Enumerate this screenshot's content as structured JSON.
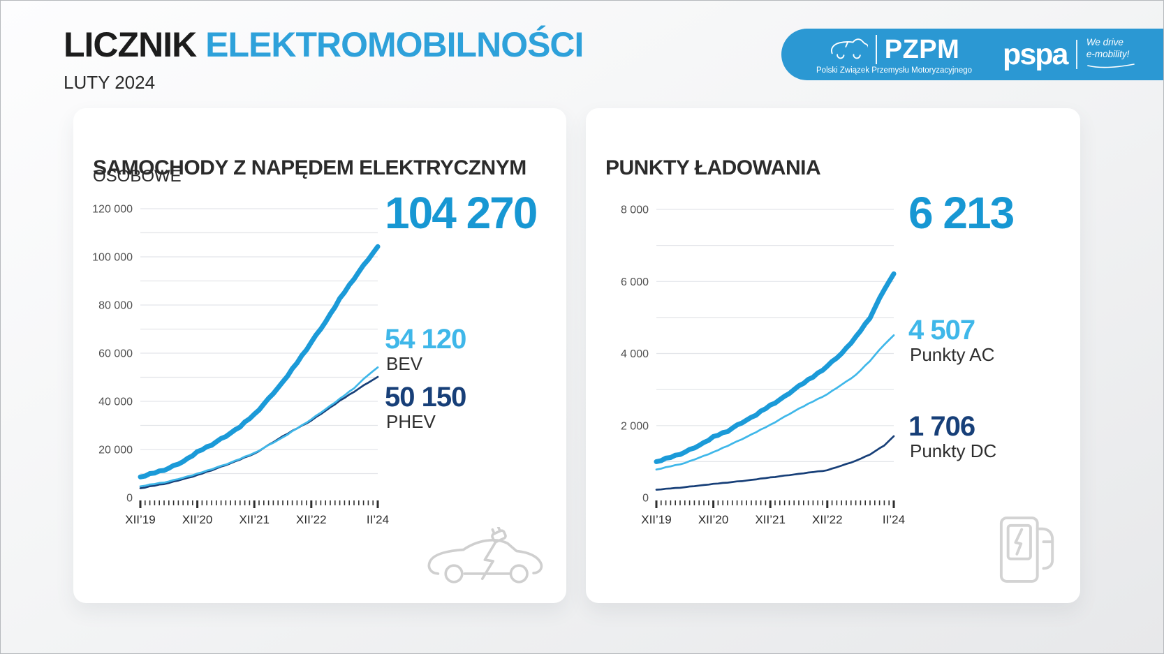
{
  "header": {
    "title_primary": "LICZNIK",
    "title_accent": "ELEKTROMOBILNOŚCI",
    "date_label": "LUTY 2024"
  },
  "banner": {
    "pzpm_name": "PZPM",
    "pzpm_full_name": "Polski Związek Przemysłu Motoryzacyjnego",
    "pspa_name": "pspa",
    "pspa_tagline_line1": "We drive",
    "pspa_tagline_line2": "e-mobility!"
  },
  "colors": {
    "accent_blue": "#1797D3",
    "light_blue": "#3FB7E9",
    "navy": "#173F78",
    "banner_blue": "#2B98D3",
    "title_blue": "#2EA1DA",
    "grid_gray": "#E3E5E9",
    "axis_text": "#4f4f4f",
    "icon_gray": "#CFCFCF"
  },
  "chart_data": [
    {
      "type": "line",
      "title": "SAMOCHODY Z NAPĘDEM ELEKTRYCZNYM",
      "subtitle": "OSOBOWE",
      "headline": {
        "value": "104 270",
        "color": "#1797D3",
        "series": "EV total"
      },
      "legend": [
        {
          "value": "54 120",
          "label": "BEV",
          "color": "#3FB7E9"
        },
        {
          "value": "50 150",
          "label": "PHEV",
          "color": "#173F78"
        }
      ],
      "legend_position": "right",
      "grid": true,
      "footer_icon": "electric-car-icon",
      "x_axis": {
        "tick_labels": [
          "XII’19",
          "XII’20",
          "XII’21",
          "XII’22",
          "II’24"
        ],
        "tick_months": [
          0,
          12,
          24,
          36,
          50
        ],
        "months_total": 50
      },
      "y_axis": {
        "min": 0,
        "max": 120000,
        "major_step": 20000,
        "minor_step": 10000,
        "tick_labels": [
          "120 000",
          "100 000",
          "80 000",
          "60 000",
          "40 000",
          "20 000",
          "0"
        ]
      },
      "series": [
        {
          "name": "EV total",
          "color": "#1B9AD8",
          "stroke_width": 7,
          "wiggle": 600,
          "points": [
            [
              0,
              8600
            ],
            [
              3,
              10300
            ],
            [
              6,
              12200
            ],
            [
              9,
              15000
            ],
            [
              12,
              18900
            ],
            [
              15,
              22000
            ],
            [
              18,
              25500
            ],
            [
              21,
              29500
            ],
            [
              24,
              34500
            ],
            [
              27,
              41000
            ],
            [
              30,
              48000
            ],
            [
              33,
              56000
            ],
            [
              36,
              64500
            ],
            [
              39,
              73000
            ],
            [
              42,
              82500
            ],
            [
              45,
              91000
            ],
            [
              48,
              99000
            ],
            [
              50,
              104270
            ]
          ]
        },
        {
          "name": "BEV",
          "color": "#3FB7E9",
          "stroke_width": 2.7,
          "wiggle": 260,
          "points": [
            [
              0,
              4700
            ],
            [
              6,
              6700
            ],
            [
              12,
              9900
            ],
            [
              18,
              13800
            ],
            [
              24,
              18500
            ],
            [
              30,
              25000
            ],
            [
              36,
              32500
            ],
            [
              42,
              41000
            ],
            [
              45,
              45500
            ],
            [
              48,
              51000
            ],
            [
              50,
              54120
            ]
          ]
        },
        {
          "name": "PHEV",
          "color": "#173F78",
          "stroke_width": 2.7,
          "wiggle": 260,
          "points": [
            [
              0,
              3900
            ],
            [
              6,
              6100
            ],
            [
              12,
              9300
            ],
            [
              18,
              13500
            ],
            [
              24,
              18200
            ],
            [
              30,
              25500
            ],
            [
              36,
              32000
            ],
            [
              42,
              40200
            ],
            [
              45,
              44000
            ],
            [
              48,
              47800
            ],
            [
              50,
              50150
            ]
          ]
        }
      ]
    },
    {
      "type": "line",
      "title": "PUNKTY ŁADOWANIA",
      "subtitle": "",
      "headline": {
        "value": "6 213",
        "color": "#1797D3",
        "series": "Charging points total"
      },
      "legend": [
        {
          "value": "4 507",
          "label": "Punkty AC",
          "color": "#3FB7E9"
        },
        {
          "value": "1 706",
          "label": "Punkty DC",
          "color": "#173F78"
        }
      ],
      "legend_position": "right",
      "grid": true,
      "footer_icon": "ev-charger-icon",
      "x_axis": {
        "tick_labels": [
          "XII’19",
          "XII’20",
          "XII’21",
          "XII’22",
          "II’24"
        ],
        "tick_months": [
          0,
          12,
          24,
          36,
          50
        ],
        "months_total": 50
      },
      "y_axis": {
        "min": 0,
        "max": 8000,
        "major_step": 2000,
        "minor_step": 1000,
        "tick_labels": [
          "8 000",
          "6 000",
          "4 000",
          "2 000",
          "0"
        ]
      },
      "series": [
        {
          "name": "Charging points total",
          "color": "#1B9AD8",
          "stroke_width": 7,
          "wiggle": 38,
          "points": [
            [
              0,
              1000
            ],
            [
              3,
              1120
            ],
            [
              6,
              1260
            ],
            [
              9,
              1450
            ],
            [
              12,
              1680
            ],
            [
              15,
              1850
            ],
            [
              18,
              2080
            ],
            [
              21,
              2300
            ],
            [
              24,
              2560
            ],
            [
              27,
              2800
            ],
            [
              30,
              3100
            ],
            [
              33,
              3350
            ],
            [
              36,
              3650
            ],
            [
              39,
              4000
            ],
            [
              42,
              4450
            ],
            [
              45,
              5000
            ],
            [
              48,
              5780
            ],
            [
              50,
              6213
            ]
          ]
        },
        {
          "name": "Punkty AC",
          "color": "#3FB7E9",
          "stroke_width": 2.7,
          "wiggle": 14,
          "points": [
            [
              0,
              780
            ],
            [
              6,
              960
            ],
            [
              12,
              1260
            ],
            [
              18,
              1620
            ],
            [
              24,
              2020
            ],
            [
              30,
              2470
            ],
            [
              36,
              2870
            ],
            [
              42,
              3400
            ],
            [
              45,
              3800
            ],
            [
              48,
              4250
            ],
            [
              50,
              4507
            ]
          ]
        },
        {
          "name": "Punkty DC",
          "color": "#173F78",
          "stroke_width": 2.7,
          "wiggle": 10,
          "points": [
            [
              0,
              220
            ],
            [
              6,
              290
            ],
            [
              12,
              380
            ],
            [
              18,
              460
            ],
            [
              24,
              560
            ],
            [
              30,
              660
            ],
            [
              36,
              760
            ],
            [
              42,
              1020
            ],
            [
              45,
              1200
            ],
            [
              48,
              1450
            ],
            [
              50,
              1706
            ]
          ]
        }
      ]
    }
  ]
}
